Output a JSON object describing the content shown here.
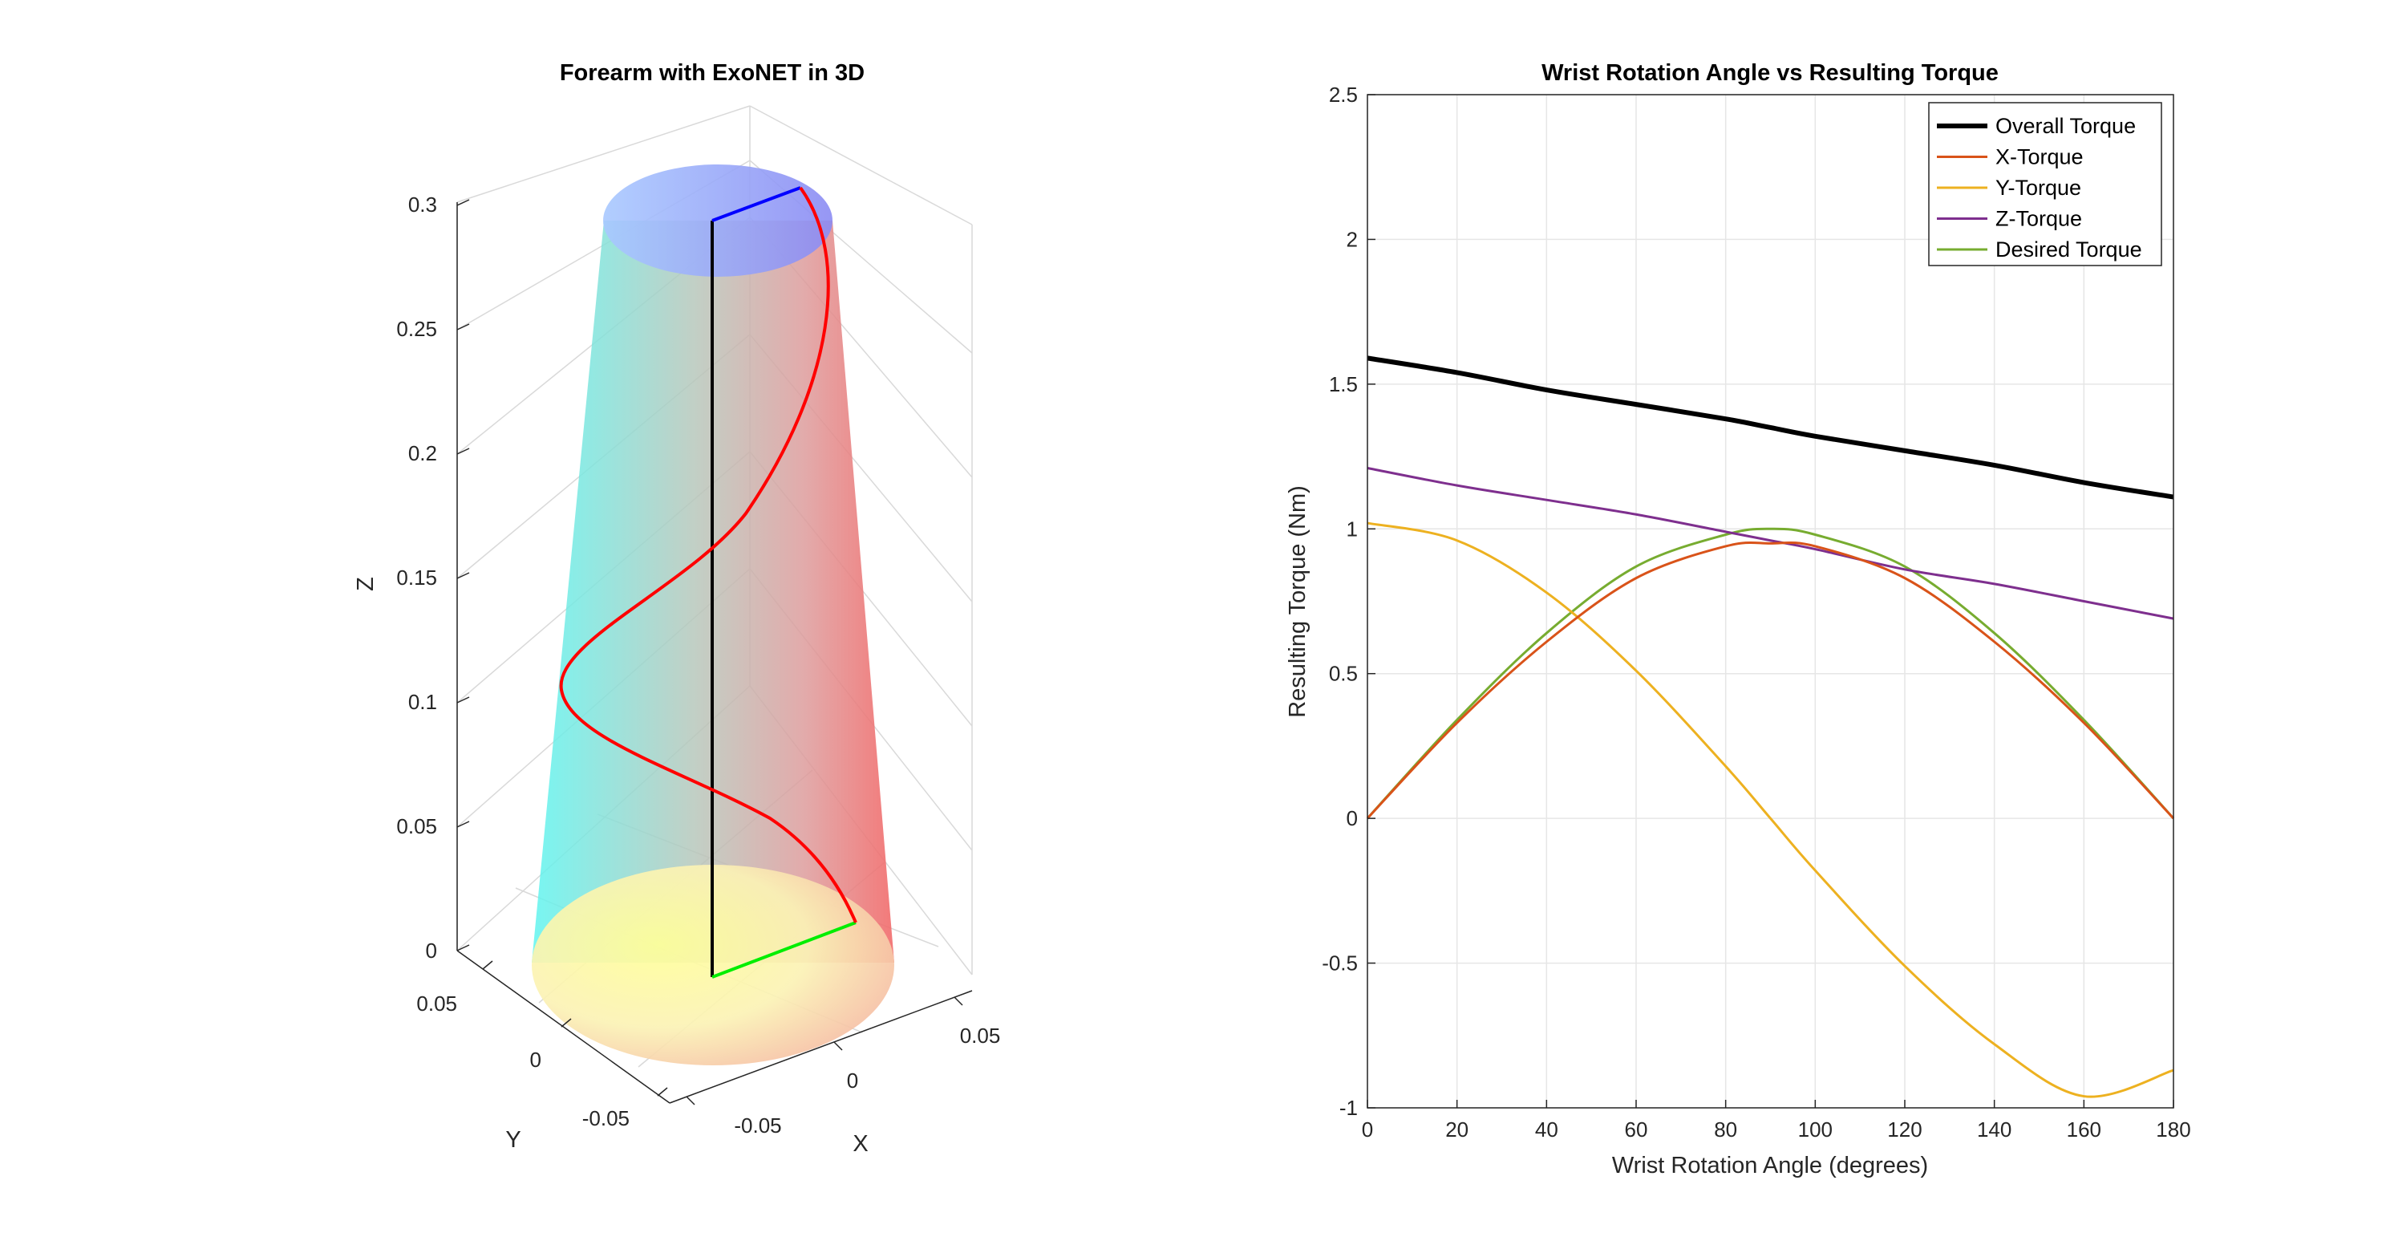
{
  "chart_data": [
    {
      "type": "3d-surface",
      "title": "Forearm with ExoNET in 3D",
      "xlabel": "X",
      "ylabel": "Y",
      "zlabel": "Z",
      "x_ticks": [
        "-0.05",
        "0",
        "0.05"
      ],
      "y_ticks": [
        "-0.05",
        "0",
        "0.05"
      ],
      "z_ticks": [
        "0",
        "0.05",
        "0.1",
        "0.15",
        "0.2",
        "0.25",
        "0.3"
      ],
      "zlim": [
        0,
        0.3
      ],
      "grid": true,
      "objects": [
        {
          "name": "forearm cone",
          "base_radius": 0.05,
          "top_radius": 0.03,
          "height": 0.3,
          "colormap": "yellow-red-cyan-blue",
          "transparency": true
        },
        {
          "name": "helical line",
          "color": "#ff0000",
          "turns": 1
        },
        {
          "name": "vertical line",
          "color": "#000000"
        },
        {
          "name": "top line",
          "color": "#0000ff"
        },
        {
          "name": "bottom line",
          "color": "#00ee00"
        }
      ]
    },
    {
      "type": "line",
      "title": "Wrist Rotation Angle vs Resulting Torque",
      "xlabel": "Wrist Rotation Angle (degrees)",
      "ylabel": "Resulting Torque (Nm)",
      "xlim": [
        0,
        180
      ],
      "ylim": [
        -1,
        2.5
      ],
      "x_ticks": [
        "0",
        "20",
        "40",
        "60",
        "80",
        "100",
        "120",
        "140",
        "160",
        "180"
      ],
      "y_ticks": [
        "-1",
        "-0.5",
        "0",
        "0.5",
        "1",
        "1.5",
        "2",
        "2.5"
      ],
      "grid": true,
      "legend_position": "top-right",
      "x": [
        0,
        20,
        40,
        60,
        80,
        90,
        100,
        120,
        140,
        160,
        180
      ],
      "series": [
        {
          "name": "Overall Torque",
          "color": "#000000",
          "width": 6,
          "values": [
            1.59,
            1.54,
            1.48,
            1.43,
            1.38,
            1.35,
            1.32,
            1.27,
            1.22,
            1.16,
            1.11
          ]
        },
        {
          "name": "X-Torque",
          "color": "#d95319",
          "width": 3,
          "values": [
            0.0,
            0.33,
            0.61,
            0.83,
            0.94,
            0.95,
            0.94,
            0.83,
            0.61,
            0.33,
            0.0
          ]
        },
        {
          "name": "Y-Torque",
          "color": "#edb120",
          "width": 3,
          "values": [
            1.02,
            0.96,
            0.78,
            0.51,
            0.18,
            0.0,
            -0.18,
            -0.51,
            -0.78,
            -0.96,
            -0.87
          ]
        },
        {
          "name": "Z-Torque",
          "color": "#7e2f8e",
          "width": 3,
          "values": [
            1.21,
            1.15,
            1.1,
            1.05,
            0.99,
            0.96,
            0.93,
            0.86,
            0.81,
            0.75,
            0.69
          ]
        },
        {
          "name": "Desired Torque",
          "color": "#77ac30",
          "width": 3,
          "values": [
            0.0,
            0.34,
            0.64,
            0.87,
            0.98,
            1.0,
            0.98,
            0.87,
            0.64,
            0.34,
            0.0
          ]
        }
      ]
    }
  ]
}
